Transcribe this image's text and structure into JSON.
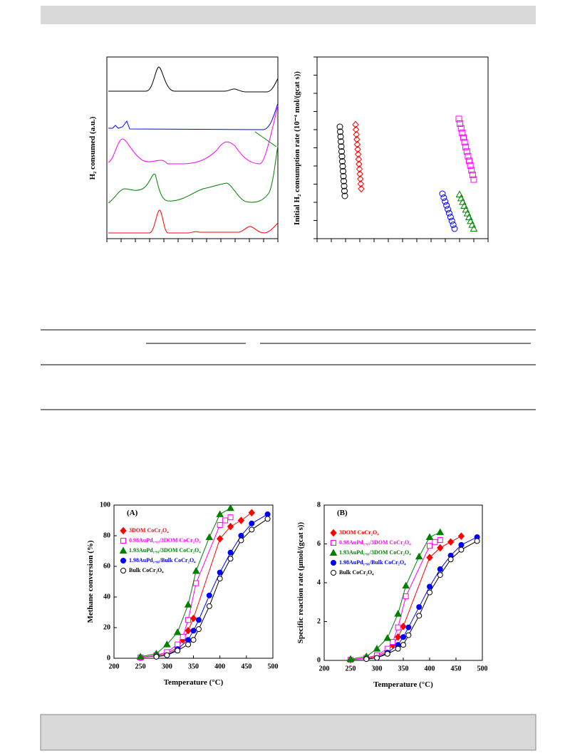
{
  "figure1": {
    "left_ylabel": "H₂ consumed (a.u.)",
    "right_ylabel": "Initial H₂ consumption rate (10⁻⁴ mol/(gcat s))"
  },
  "chart_data": [
    {
      "type": "line",
      "panel": "(A)",
      "xlabel": "Temperature (°C)",
      "ylabel": "Methane conversion (%)",
      "xlim": [
        200,
        500
      ],
      "xticks": [
        200,
        250,
        300,
        350,
        400,
        450,
        500
      ],
      "ylim": [
        0,
        100
      ],
      "yticks": [
        0,
        20,
        40,
        60,
        80,
        100
      ],
      "series": [
        {
          "name": "3DOM CoCr₂O₄",
          "color": "#ff0000",
          "marker": "diamond",
          "filled": true,
          "x": [
            250,
            280,
            300,
            320,
            330,
            340,
            350,
            400,
            420,
            440,
            460
          ],
          "values": [
            0.5,
            1.5,
            3,
            7,
            12,
            18,
            26,
            78,
            86,
            90,
            95
          ]
        },
        {
          "name": "0.98AuPd₁.₉₃/3DOM CoCr₂O₄",
          "color": "#ff00ff",
          "marker": "square",
          "filled": false,
          "x": [
            250,
            280,
            300,
            320,
            330,
            340,
            355,
            400,
            410,
            420
          ],
          "values": [
            0.5,
            2,
            4,
            9,
            14,
            25,
            49,
            87,
            90,
            92
          ]
        },
        {
          "name": "1.93AuPd₁.₉₁/3DOM CoCr₂O₄",
          "color": "#008000",
          "marker": "triangle",
          "filled": true,
          "x": [
            250,
            280,
            300,
            320,
            340,
            355,
            380,
            400,
            420
          ],
          "values": [
            1,
            3,
            9,
            17,
            35,
            57,
            79,
            94,
            98
          ]
        },
        {
          "name": "1.98AuPd₁.₉₆/Bulk CoCr₂O₄",
          "color": "#0000ff",
          "marker": "circle",
          "filled": true,
          "x": [
            280,
            300,
            320,
            340,
            350,
            360,
            380,
            400,
            420,
            440,
            460,
            490
          ],
          "values": [
            1,
            2,
            6,
            12,
            18,
            25,
            41,
            56,
            69,
            80,
            88,
            94
          ]
        },
        {
          "name": "Bulk CoCr₂O₄",
          "color": "#000000",
          "marker": "circle",
          "filled": false,
          "x": [
            280,
            300,
            320,
            340,
            350,
            360,
            380,
            400,
            420,
            440,
            460,
            490
          ],
          "values": [
            1,
            2,
            5,
            9,
            12,
            19,
            34,
            52,
            65,
            77,
            84,
            91
          ]
        }
      ]
    },
    {
      "type": "line",
      "panel": "(B)",
      "xlabel": "Temperature (°C)",
      "ylabel": "Specific reaction rate (μmol/(gcat s))",
      "xlim": [
        200,
        500
      ],
      "xticks": [
        200,
        250,
        300,
        350,
        400,
        450,
        500
      ],
      "ylim": [
        0,
        8
      ],
      "yticks": [
        0,
        2,
        4,
        6,
        8
      ],
      "series": [
        {
          "name": "3DOM CoCr₂O₄",
          "color": "#ff0000",
          "marker": "diamond",
          "filled": true,
          "x": [
            250,
            280,
            300,
            320,
            330,
            340,
            350,
            400,
            420,
            440,
            460
          ],
          "values": [
            0.03,
            0.1,
            0.2,
            0.47,
            0.8,
            1.2,
            1.75,
            5.3,
            5.8,
            6.1,
            6.4
          ]
        },
        {
          "name": "0.98AuPd₁.₉₃/3DOM CoCr₂O₄",
          "color": "#ff00ff",
          "marker": "square",
          "filled": false,
          "x": [
            250,
            280,
            300,
            320,
            330,
            340,
            355,
            400,
            410,
            420
          ],
          "values": [
            0.03,
            0.13,
            0.27,
            0.6,
            0.95,
            1.7,
            3.3,
            5.9,
            6.1,
            6.2
          ]
        },
        {
          "name": "1.93AuPd₁.₉₁/3DOM CoCr₂O₄",
          "color": "#008000",
          "marker": "triangle",
          "filled": true,
          "x": [
            250,
            280,
            300,
            320,
            340,
            355,
            380,
            400,
            420
          ],
          "values": [
            0.07,
            0.2,
            0.6,
            1.15,
            2.4,
            3.85,
            5.35,
            6.35,
            6.6
          ]
        },
        {
          "name": "1.98AuPd₁.₉₆/Bulk CoCr₂O₄",
          "color": "#0000ff",
          "marker": "circle",
          "filled": true,
          "x": [
            280,
            300,
            320,
            340,
            350,
            360,
            380,
            400,
            420,
            440,
            460,
            490
          ],
          "values": [
            0.07,
            0.13,
            0.4,
            0.8,
            1.2,
            1.7,
            2.75,
            3.8,
            4.7,
            5.4,
            5.95,
            6.35
          ]
        },
        {
          "name": "Bulk CoCr₂O₄",
          "color": "#000000",
          "marker": "circle",
          "filled": false,
          "x": [
            280,
            300,
            320,
            340,
            350,
            360,
            380,
            400,
            420,
            440,
            460,
            490
          ],
          "values": [
            0.07,
            0.13,
            0.34,
            0.6,
            0.8,
            1.3,
            2.3,
            3.5,
            4.4,
            5.2,
            5.7,
            6.15
          ]
        }
      ]
    }
  ]
}
